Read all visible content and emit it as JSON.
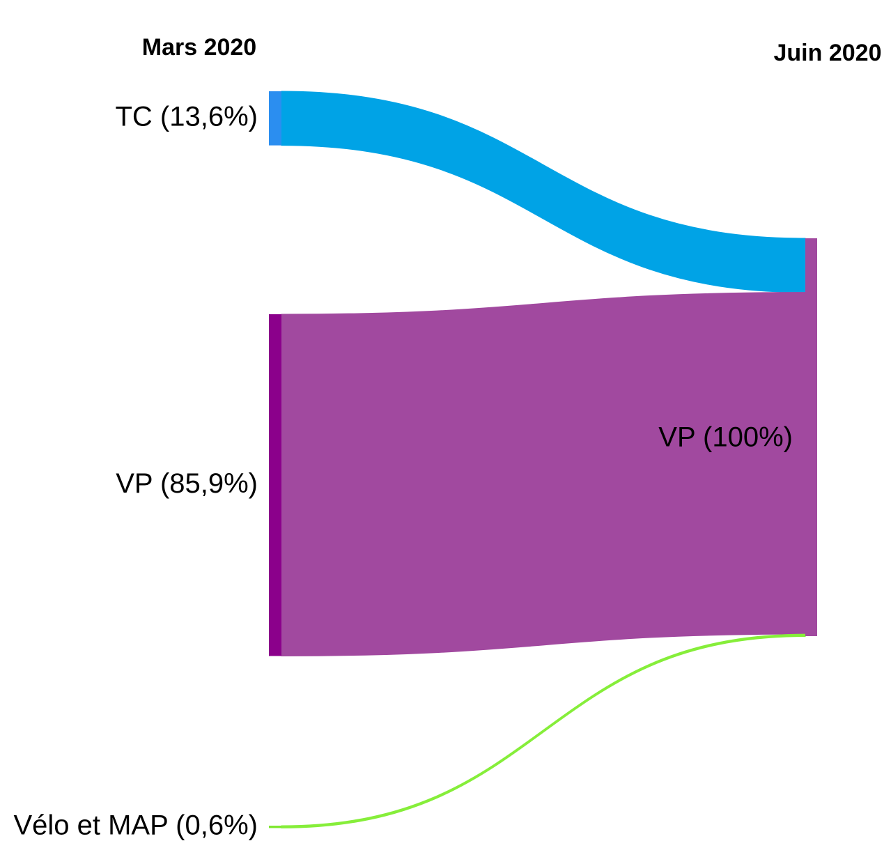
{
  "chart_data": {
    "type": "sankey",
    "source_title": "Mars 2020",
    "target_title": "Juin 2020",
    "categories": [
      "TC (13,6%)",
      "VP (85,9%)",
      "Vélo et MAP (0,6%)"
    ],
    "values": [
      13.6,
      85.9,
      0.6
    ],
    "node_colors": [
      "#2b8ef0",
      "#8b008b",
      "#7fe830"
    ],
    "colors": [
      "#00a3e6",
      "#a1499f",
      "#86ee3a"
    ],
    "target": "VP (100%)",
    "target_value": 100,
    "target_color": "#a1499f"
  }
}
